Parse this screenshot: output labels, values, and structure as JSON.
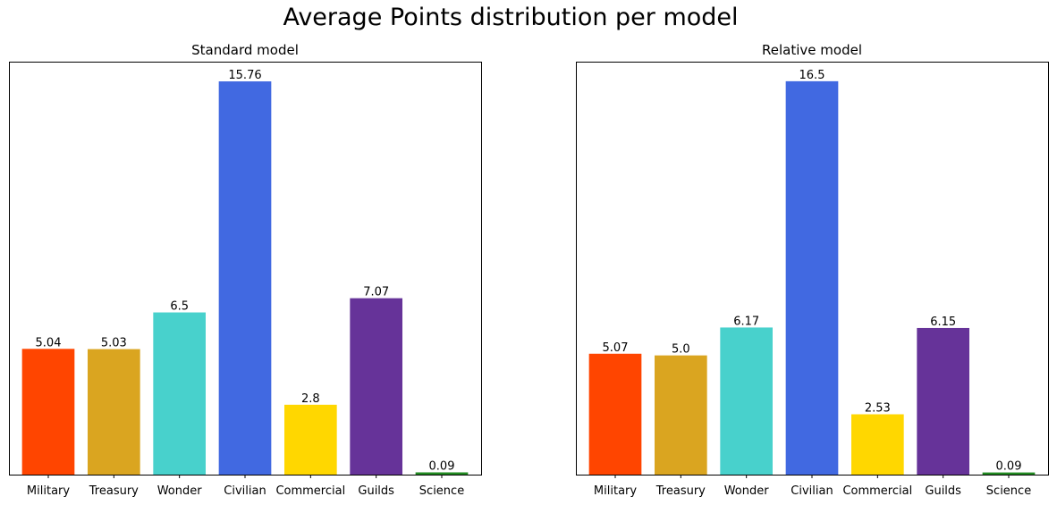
{
  "suptitle": "Average Points distribution per model",
  "chart_data": [
    {
      "type": "bar",
      "title": "Standard model",
      "xlabel": "",
      "ylabel": "",
      "categories": [
        "Military",
        "Treasury",
        "Wonder",
        "Civilian",
        "Commercial",
        "Guilds",
        "Science"
      ],
      "values": [
        5.04,
        5.03,
        6.5,
        15.76,
        2.8,
        7.07,
        0.09
      ],
      "value_labels": [
        "5.04",
        "5.03",
        "6.5",
        "15.76",
        "2.8",
        "7.07",
        "0.09"
      ],
      "colors": [
        "#FF4500",
        "#DAA520",
        "#48D1CC",
        "#4169E1",
        "#FFD700",
        "#663399",
        "#228B22"
      ],
      "ylim": [
        0,
        16.55
      ],
      "y_ticks_visible": false,
      "grid": false
    },
    {
      "type": "bar",
      "title": "Relative model",
      "xlabel": "",
      "ylabel": "",
      "categories": [
        "Military",
        "Treasury",
        "Wonder",
        "Civilian",
        "Commercial",
        "Guilds",
        "Science"
      ],
      "values": [
        5.07,
        5.0,
        6.17,
        16.5,
        2.53,
        6.15,
        0.09
      ],
      "value_labels": [
        "5.07",
        "5.0",
        "6.17",
        "16.5",
        "2.53",
        "6.15",
        "0.09"
      ],
      "colors": [
        "#FF4500",
        "#DAA520",
        "#48D1CC",
        "#4169E1",
        "#FFD700",
        "#663399",
        "#228B22"
      ],
      "ylim": [
        0,
        17.32
      ],
      "y_ticks_visible": false,
      "grid": false
    }
  ]
}
